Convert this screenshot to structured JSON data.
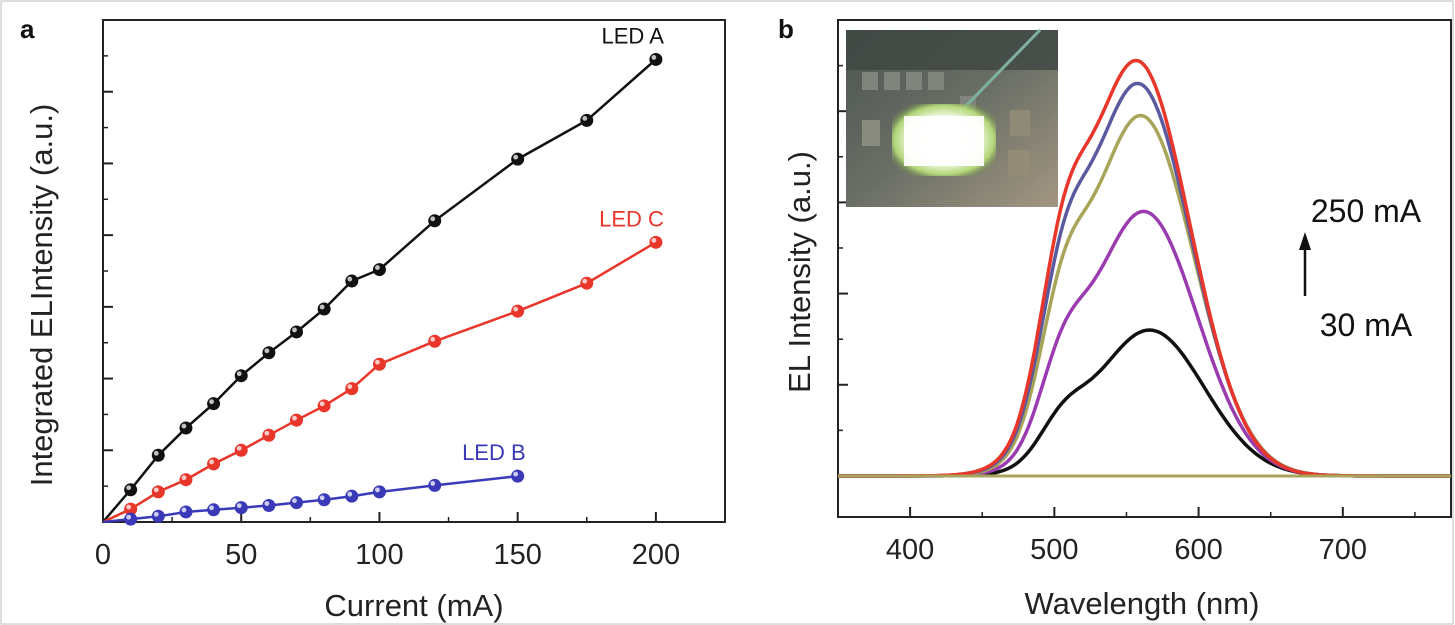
{
  "panels": {
    "a_label": "a",
    "b_label": "b"
  },
  "colors": {
    "LED A": "#111111",
    "LED B": "#3a3ab8",
    "LED C": "#e8362a",
    "30 mA": "#111111",
    "curve_2": "#9a3cb0",
    "curve_3": "#a8a45a",
    "curve_4": "#5a5aa0",
    "250 mA": "#e8362a"
  },
  "inset": {
    "description_icon": "led-chip-photo"
  },
  "annotation_b": {
    "top": "250 mA",
    "bottom": "30 mA",
    "arrow_icon": "up-arrow-icon"
  },
  "chart_data": [
    {
      "type": "line",
      "title": "",
      "xlabel": "Current (mA)",
      "ylabel": "Integrated ELIntensity (a.u.)",
      "xlim": [
        0,
        225
      ],
      "ylim": [
        0,
        7
      ],
      "xticks": [
        0,
        50,
        100,
        150,
        200
      ],
      "xtick_labels": [
        "0",
        "50",
        "100",
        "150",
        "200"
      ],
      "y_tick_labels_shown": false,
      "grid": false,
      "series": [
        {
          "name": "LED A",
          "x": [
            0,
            10,
            20,
            30,
            40,
            50,
            60,
            70,
            80,
            90,
            100,
            120,
            150,
            175,
            200
          ],
          "y": [
            0,
            0.45,
            0.93,
            1.31,
            1.65,
            2.04,
            2.36,
            2.65,
            2.97,
            3.36,
            3.52,
            4.2,
            5.06,
            5.6,
            6.45
          ]
        },
        {
          "name": "LED C",
          "x": [
            0,
            10,
            20,
            30,
            40,
            50,
            60,
            70,
            80,
            90,
            100,
            120,
            150,
            175,
            200
          ],
          "y": [
            0,
            0.18,
            0.42,
            0.59,
            0.81,
            1.0,
            1.21,
            1.42,
            1.62,
            1.86,
            2.2,
            2.52,
            2.94,
            3.33,
            3.9
          ]
        },
        {
          "name": "LED B",
          "x": [
            0,
            10,
            20,
            30,
            40,
            50,
            60,
            70,
            80,
            90,
            100,
            120,
            150
          ],
          "y": [
            0,
            0.04,
            0.08,
            0.14,
            0.17,
            0.2,
            0.23,
            0.27,
            0.31,
            0.36,
            0.42,
            0.51,
            0.64
          ]
        }
      ]
    },
    {
      "type": "line",
      "title": "",
      "xlabel": "Wavelength (nm)",
      "ylabel": "EL Intensity (a.u.)",
      "xlim": [
        350,
        775
      ],
      "ylim": [
        -0.45,
        5.0
      ],
      "xticks": [
        400,
        500,
        600,
        700
      ],
      "xtick_labels": [
        "400",
        "500",
        "600",
        "700"
      ],
      "y_tick_labels_shown": false,
      "grid": false,
      "series": [
        {
          "label": "30 mA",
          "peak": 1.6,
          "center": 566,
          "sigma": 38,
          "shoulder": 0.22
        },
        {
          "label": "curve_2",
          "peak": 2.9,
          "center": 562,
          "sigma": 37,
          "shoulder": 0.25
        },
        {
          "label": "curve_3",
          "peak": 3.95,
          "center": 560,
          "sigma": 37,
          "shoulder": 0.27
        },
        {
          "label": "curve_4",
          "peak": 4.3,
          "center": 558,
          "sigma": 37,
          "shoulder": 0.27
        },
        {
          "label": "250 mA",
          "peak": 4.55,
          "center": 557,
          "sigma": 37,
          "shoulder": 0.28
        }
      ]
    }
  ]
}
